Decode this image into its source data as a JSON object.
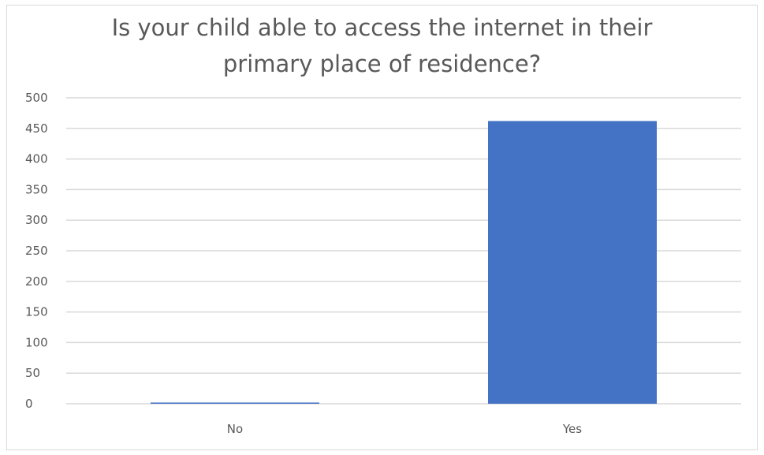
{
  "chart_data": {
    "type": "bar",
    "title_lines": [
      "Is your child able to access the internet in their",
      "primary place of residence?"
    ],
    "categories": [
      "No",
      "Yes"
    ],
    "values": [
      2,
      462
    ],
    "ylim": [
      0,
      500
    ],
    "yticks": [
      0,
      50,
      100,
      150,
      200,
      250,
      300,
      350,
      400,
      450,
      500
    ],
    "grid": true,
    "legend": "none",
    "bar_color": "#4472c4",
    "grid_color": "#d9d9d9"
  }
}
